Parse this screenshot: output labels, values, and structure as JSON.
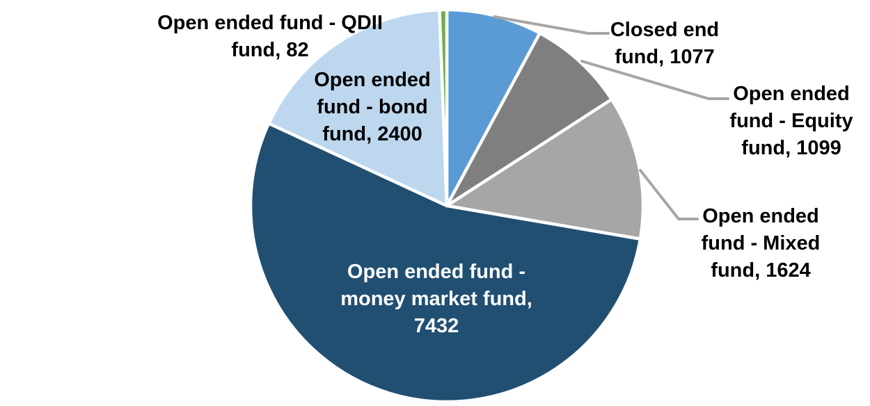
{
  "chart_data": {
    "type": "pie",
    "total": 13714,
    "start_angle_deg": 0,
    "direction": "clockwise",
    "background_color": "#FFFFFF",
    "slice_border_color": "#FFFFFF",
    "leader_line_color": "#A6A6A6",
    "legend_position": "none",
    "segments": [
      {
        "id": "closed-end-fund",
        "name": "Closed end fund",
        "value": 1077,
        "color": "#5B9BD5",
        "label": "Closed end fund, 1077",
        "label_lines": [
          "Closed end",
          "fund, 1077"
        ],
        "label_color": "#000000",
        "label_placement": "outside",
        "leader_line": true
      },
      {
        "id": "open-ended-fund-equity-fund",
        "name": "Open ended fund - Equity fund",
        "value": 1099,
        "color": "#7F7F7F",
        "label": "Open ended fund - Equity fund, 1099",
        "label_lines": [
          "Open ended",
          "fund - Equity",
          "fund, 1099"
        ],
        "label_color": "#000000",
        "label_placement": "outside",
        "leader_line": true
      },
      {
        "id": "open-ended-fund-mixed-fund",
        "name": "Open ended fund - Mixed fund",
        "value": 1624,
        "color": "#A6A6A6",
        "label": "Open ended fund - Mixed fund, 1624",
        "label_lines": [
          "Open ended",
          "fund - Mixed",
          "fund, 1624"
        ],
        "label_color": "#000000",
        "label_placement": "outside",
        "leader_line": true
      },
      {
        "id": "open-ended-fund-money-market-fund",
        "name": "Open ended fund - money market fund",
        "value": 7432,
        "color": "#214F72",
        "label": "Open ended fund - money market fund, 7432",
        "label_lines": [
          "Open ended fund -",
          "money market fund,",
          "7432"
        ],
        "label_color": "#FFFFFF",
        "label_placement": "inside",
        "leader_line": false
      },
      {
        "id": "open-ended-fund-bond-fund",
        "name": "Open ended fund - bond fund",
        "value": 2400,
        "color": "#BDD7EE",
        "label": "Open ended fund - bond fund, 2400",
        "label_lines": [
          "Open ended",
          "fund - bond",
          "fund, 2400"
        ],
        "label_color": "#000000",
        "label_placement": "outside",
        "leader_line": false
      },
      {
        "id": "open-ended-fund-qdii-fund",
        "name": "Open ended fund - QDII fund",
        "value": 82,
        "color": "#70AD47",
        "label": "Open ended fund - QDII fund, 82",
        "label_lines": [
          "Open ended fund - QDII",
          "fund, 82"
        ],
        "label_color": "#000000",
        "label_placement": "outside",
        "leader_line": false
      }
    ]
  }
}
